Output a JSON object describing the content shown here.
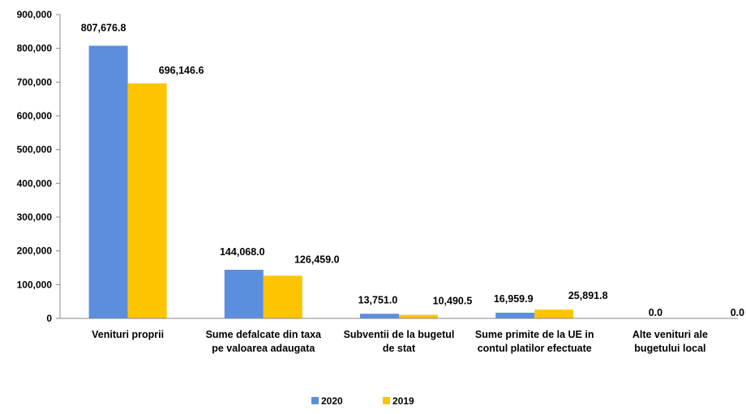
{
  "chart_data": {
    "type": "bar",
    "categories": [
      [
        "Venituri proprii"
      ],
      [
        "Sume defalcate din taxa",
        "pe valoarea adaugata"
      ],
      [
        "Subventii de la bugetul",
        "de stat"
      ],
      [
        "Sume primite de la UE in",
        "contul platilor efectuate"
      ],
      [
        "Alte venituri ale",
        "bugetului local"
      ]
    ],
    "series": [
      {
        "name": "2020",
        "color": "#5B8FDD",
        "values": [
          807676.8,
          144068.0,
          13751.0,
          16959.9,
          0.0
        ],
        "labels": [
          "807,676.8",
          "144,068.0",
          "13,751.0",
          "16,959.9",
          "0.0"
        ]
      },
      {
        "name": "2019",
        "color": "#FFC400",
        "values": [
          696146.6,
          126459.0,
          10490.5,
          25891.8,
          0.0
        ],
        "labels": [
          "696,146.6",
          "126,459.0",
          "10,490.5",
          "25,891.8",
          "0.0"
        ]
      }
    ],
    "ylim": [
      0,
      900000
    ],
    "yticks": [
      0,
      100000,
      200000,
      300000,
      400000,
      500000,
      600000,
      700000,
      800000,
      900000
    ],
    "ytick_labels": [
      "0",
      "100,000",
      "200,000",
      "300,000",
      "400,000",
      "500,000",
      "600,000",
      "700,000",
      "800,000",
      "900,000"
    ],
    "title": "",
    "xlabel": "",
    "ylabel": "",
    "grid": false,
    "legend_position": "bottom-center"
  }
}
